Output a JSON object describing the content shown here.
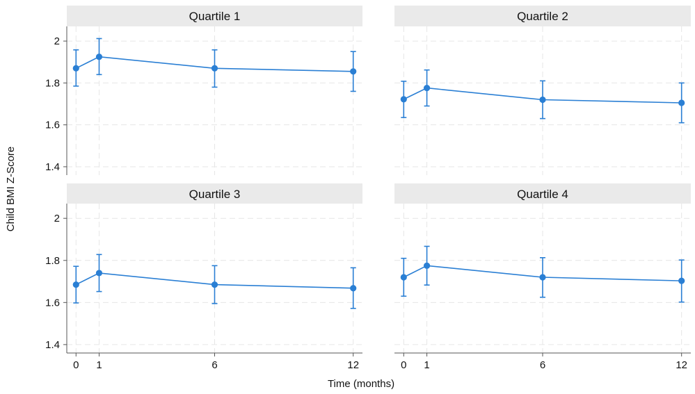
{
  "chart_data": {
    "type": "line",
    "subtype": "connected points with 95% confidence interval error bars, faceted 2x2",
    "xlabel": "Time (months)",
    "ylabel": "Child BMI Z-Score",
    "x": [
      0,
      1,
      6,
      12
    ],
    "xticks": [
      "0",
      "1",
      "6",
      "12"
    ],
    "yticks": [
      "1.4",
      "1.6",
      "1.8",
      "2"
    ],
    "ylim": [
      1.36,
      2.07
    ],
    "xlim": [
      -0.4,
      12.4
    ],
    "grid": true,
    "color": "#2a7fd4",
    "panels": [
      {
        "title": "Quartile 1",
        "values": [
          1.87,
          1.925,
          1.87,
          1.855
        ],
        "lower": [
          1.785,
          1.84,
          1.78,
          1.76
        ],
        "upper": [
          1.958,
          2.012,
          1.958,
          1.95
        ]
      },
      {
        "title": "Quartile 2",
        "values": [
          1.722,
          1.776,
          1.72,
          1.705
        ],
        "lower": [
          1.635,
          1.69,
          1.63,
          1.61
        ],
        "upper": [
          1.808,
          1.862,
          1.81,
          1.8
        ]
      },
      {
        "title": "Quartile 3",
        "values": [
          1.685,
          1.74,
          1.685,
          1.668
        ],
        "lower": [
          1.598,
          1.652,
          1.595,
          1.572
        ],
        "upper": [
          1.772,
          1.828,
          1.775,
          1.765
        ]
      },
      {
        "title": "Quartile 4",
        "values": [
          1.72,
          1.775,
          1.72,
          1.703
        ],
        "lower": [
          1.63,
          1.683,
          1.625,
          1.602
        ],
        "upper": [
          1.81,
          1.867,
          1.813,
          1.802
        ]
      }
    ]
  }
}
